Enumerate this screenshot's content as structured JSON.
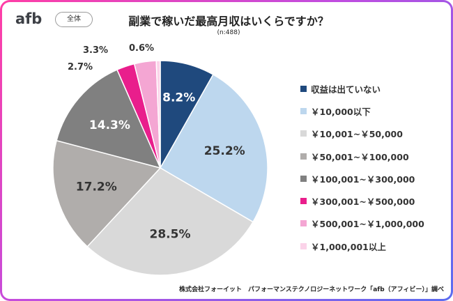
{
  "header": {
    "logo_text": "afb",
    "badge_label": "全体",
    "title": "副業で稼いだ最高月収はいくらですか？",
    "sample_note": "(n:488)"
  },
  "footer": {
    "source": "株式会社フォーイット　パフォーマンステクノロジーネットワーク「afb（アフィビー）」調べ"
  },
  "colors": {
    "frame_start": "#ff3ea5",
    "frame_end": "#5b6cf0"
  },
  "chart_data": {
    "type": "pie",
    "title": "副業で稼いだ最高月収はいくらですか？",
    "subtitle": "(n:488)",
    "legend_position": "right",
    "start": "12 o'clock, clockwise",
    "slices": [
      {
        "label": "収益は出ていない",
        "value": 8.2,
        "display": "8.2%",
        "color": "#1f497d",
        "label_color": "#ffffff",
        "label_inside": true
      },
      {
        "label": "￥10,000以下",
        "value": 25.2,
        "display": "25.2%",
        "color": "#bdd7ee",
        "label_color": "#333333",
        "label_inside": true
      },
      {
        "label": "￥10,001~￥50,000",
        "value": 28.5,
        "display": "28.5%",
        "color": "#d9d9d9",
        "label_color": "#333333",
        "label_inside": true
      },
      {
        "label": "￥50,001~￥100,000",
        "value": 17.2,
        "display": "17.2%",
        "color": "#b0adab",
        "label_color": "#333333",
        "label_inside": true
      },
      {
        "label": "￥100,001~￥300,000",
        "value": 14.3,
        "display": "14.3%",
        "color": "#808080",
        "label_color": "#ffffff",
        "label_inside": true
      },
      {
        "label": "￥300,001~￥500,000",
        "value": 2.7,
        "display": "2.7%",
        "color": "#e91e8c",
        "label_color": "#333333",
        "label_inside": false
      },
      {
        "label": "￥500,001~￥1,000,000",
        "value": 3.3,
        "display": "3.3%",
        "color": "#f4a6d3",
        "label_color": "#333333",
        "label_inside": false
      },
      {
        "label": "￥1,000,001以上",
        "value": 0.6,
        "display": "0.6%",
        "color": "#fbd3e9",
        "label_color": "#333333",
        "label_inside": false
      }
    ]
  }
}
